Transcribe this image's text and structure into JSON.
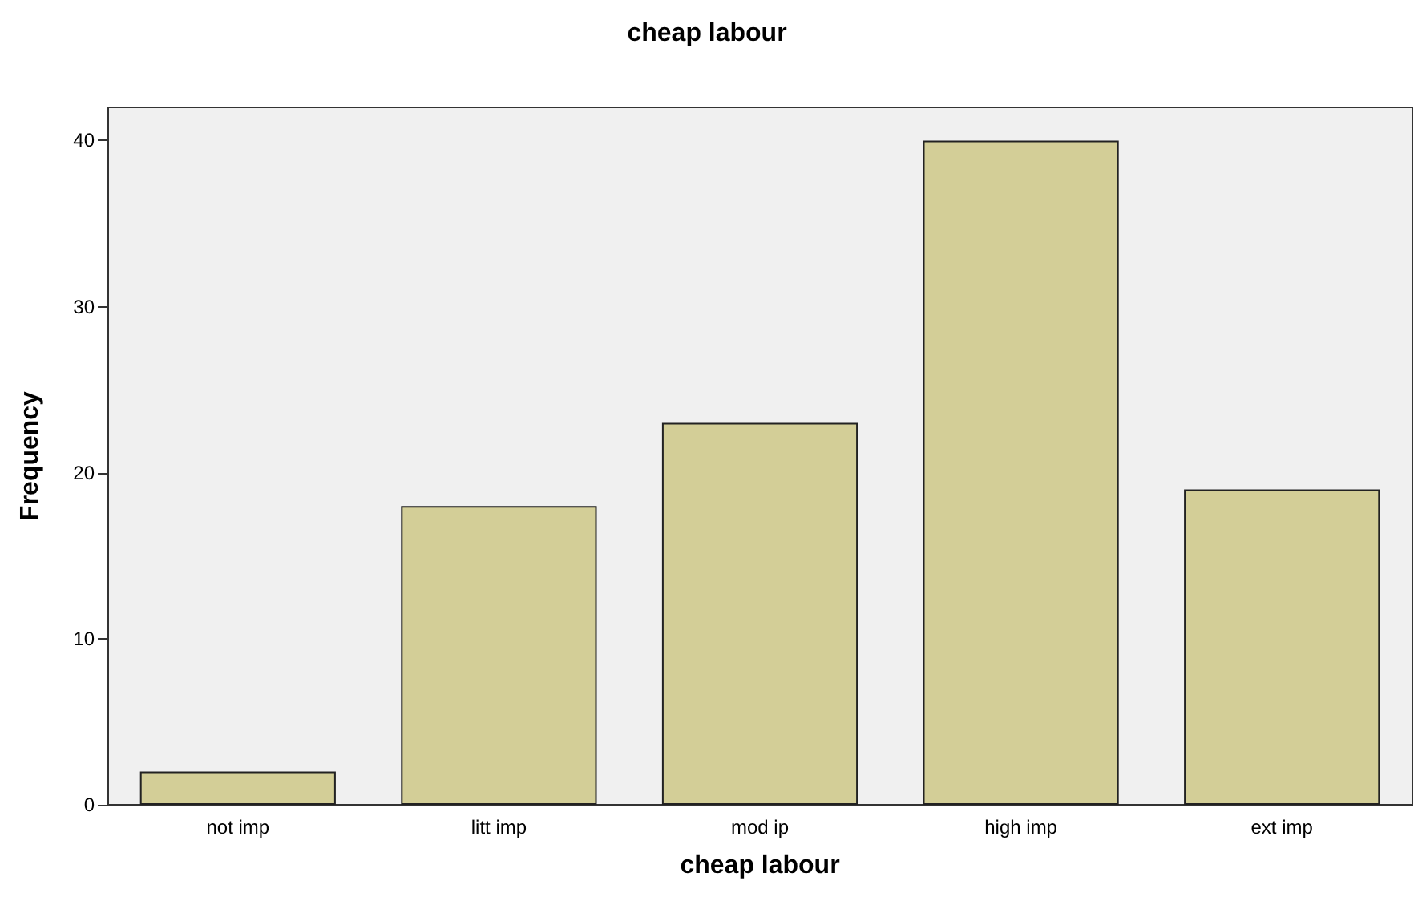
{
  "chart_data": {
    "type": "bar",
    "title": "cheap labour",
    "xlabel": "cheap labour",
    "ylabel": "Frequency",
    "categories": [
      "not imp",
      "litt imp",
      "mod ip",
      "high imp",
      "ext imp"
    ],
    "values": [
      2,
      18,
      23,
      40,
      19
    ],
    "color": "#d3ce97",
    "ylim": [
      0,
      42
    ],
    "yticks": [
      0,
      10,
      20,
      30,
      40
    ],
    "grid": false
  }
}
